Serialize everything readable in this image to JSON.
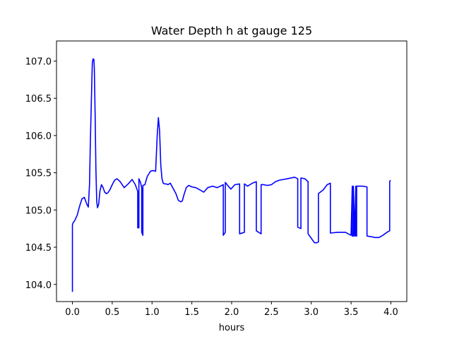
{
  "chart_data": {
    "type": "line",
    "title": "Water Depth h at gauge 125",
    "xlabel": "hours",
    "ylabel": "",
    "xlim": [
      -0.2,
      4.2
    ],
    "ylim": [
      103.77,
      107.27
    ],
    "xticks": [
      0.0,
      0.5,
      1.0,
      1.5,
      2.0,
      2.5,
      3.0,
      3.5,
      4.0
    ],
    "xtick_labels": [
      "0.0",
      "0.5",
      "1.0",
      "1.5",
      "2.0",
      "2.5",
      "3.0",
      "3.5",
      "4.0"
    ],
    "yticks": [
      104.0,
      104.5,
      105.0,
      105.5,
      106.0,
      106.5,
      107.0
    ],
    "ytick_labels": [
      "104.0",
      "104.5",
      "105.0",
      "105.5",
      "106.0",
      "106.5",
      "107.0"
    ],
    "grid": false,
    "legend": null,
    "series": [
      {
        "color": "#0000ff",
        "x": [
          0.0,
          0.0,
          0.0,
          0.005,
          0.01,
          0.03,
          0.06,
          0.09,
          0.12,
          0.15,
          0.18,
          0.2,
          0.215,
          0.225,
          0.24,
          0.25,
          0.26,
          0.27,
          0.275,
          0.285,
          0.295,
          0.305,
          0.315,
          0.33,
          0.345,
          0.365,
          0.385,
          0.405,
          0.425,
          0.445,
          0.47,
          0.5,
          0.53,
          0.56,
          0.6,
          0.65,
          0.7,
          0.75,
          0.79,
          0.82,
          0.82,
          0.835,
          0.835,
          0.855,
          0.87,
          0.87,
          0.885,
          0.885,
          0.91,
          0.94,
          0.98,
          1.01,
          1.045,
          1.065,
          1.08,
          1.095,
          1.11,
          1.125,
          1.14,
          1.16,
          1.18,
          1.2,
          1.23,
          1.26,
          1.3,
          1.33,
          1.36,
          1.38,
          1.4,
          1.43,
          1.46,
          1.5,
          1.55,
          1.6,
          1.65,
          1.7,
          1.76,
          1.82,
          1.895,
          1.895,
          1.92,
          1.92,
          1.95,
          1.99,
          2.04,
          2.1,
          2.1,
          2.16,
          2.16,
          2.2,
          2.26,
          2.31,
          2.31,
          2.37,
          2.37,
          2.4,
          2.45,
          2.5,
          2.55,
          2.6,
          2.7,
          2.79,
          2.83,
          2.83,
          2.87,
          2.87,
          2.92,
          2.96,
          2.96,
          3.0,
          3.04,
          3.07,
          3.09,
          3.09,
          3.15,
          3.2,
          3.24,
          3.24,
          3.33,
          3.43,
          3.5,
          3.5,
          3.515,
          3.515,
          3.53,
          3.53,
          3.545,
          3.545,
          3.56,
          3.56,
          3.57,
          3.57,
          3.6,
          3.64,
          3.7,
          3.7,
          3.76,
          3.8,
          3.85,
          3.9,
          3.95,
          3.985,
          3.985,
          3.995
        ],
        "y": [
          103.9,
          104.15,
          104.8,
          104.82,
          104.83,
          104.86,
          104.93,
          105.05,
          105.15,
          105.17,
          105.08,
          105.04,
          105.35,
          105.9,
          106.55,
          106.98,
          107.03,
          107.02,
          106.9,
          106.3,
          105.55,
          105.12,
          105.03,
          105.08,
          105.25,
          105.34,
          105.3,
          105.24,
          105.22,
          105.23,
          105.27,
          105.34,
          105.4,
          105.42,
          105.38,
          105.3,
          105.35,
          105.41,
          105.34,
          105.25,
          104.76,
          104.76,
          105.42,
          105.37,
          105.3,
          104.7,
          104.66,
          105.33,
          105.34,
          105.45,
          105.52,
          105.53,
          105.52,
          106.0,
          106.24,
          106.06,
          105.6,
          105.42,
          105.36,
          105.35,
          105.35,
          105.34,
          105.36,
          105.3,
          105.22,
          105.13,
          105.11,
          105.12,
          105.2,
          105.3,
          105.33,
          105.31,
          105.3,
          105.27,
          105.24,
          105.3,
          105.32,
          105.3,
          105.34,
          104.66,
          104.7,
          105.37,
          105.33,
          105.28,
          105.34,
          105.35,
          104.68,
          104.7,
          105.35,
          105.32,
          105.36,
          105.38,
          104.72,
          104.68,
          105.34,
          105.34,
          105.33,
          105.34,
          105.38,
          105.4,
          105.42,
          105.44,
          105.42,
          104.77,
          104.75,
          105.43,
          105.42,
          105.38,
          104.68,
          104.62,
          104.56,
          104.56,
          104.57,
          105.22,
          105.27,
          105.34,
          105.36,
          104.69,
          104.7,
          104.7,
          104.66,
          104.66,
          105.32,
          104.65,
          104.65,
          105.32,
          104.65,
          104.65,
          105.32,
          104.65,
          104.65,
          105.32,
          105.32,
          105.32,
          105.31,
          104.65,
          104.64,
          104.63,
          104.63,
          104.66,
          104.7,
          104.72,
          105.38,
          105.4
        ]
      }
    ]
  }
}
